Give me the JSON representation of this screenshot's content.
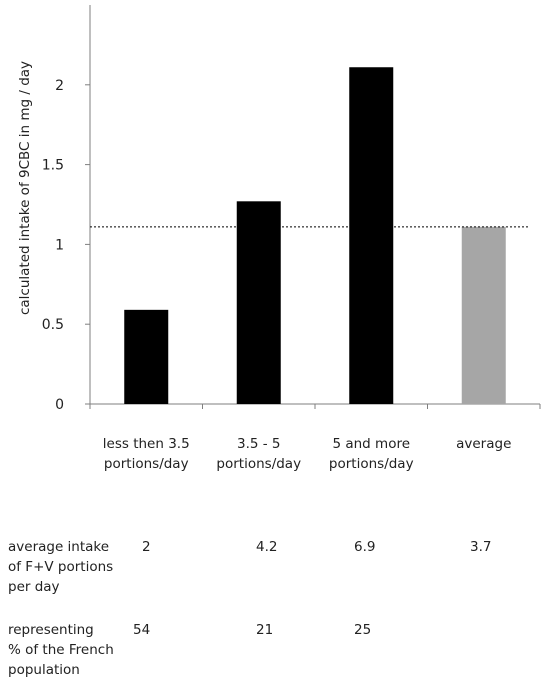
{
  "chart_data": {
    "type": "bar",
    "ylabel": "calculated intake of 9CBC in mg / day",
    "xlabel": "",
    "title": "",
    "ylim": [
      0,
      2.5
    ],
    "yticks": [
      0,
      0.5,
      1,
      1.5,
      2
    ],
    "ytick_labels": [
      "0",
      "0.5",
      "1",
      "1.5",
      "2"
    ],
    "categories": [
      [
        "less then 3.5",
        "portions/day"
      ],
      [
        "3.5 - 5",
        "portions/day"
      ],
      [
        "5 and more",
        "portions/day"
      ],
      [
        "average"
      ]
    ],
    "values": [
      0.59,
      1.27,
      2.11,
      1.11
    ],
    "colors": [
      "#000000",
      "#000000",
      "#000000",
      "#a6a6a6"
    ],
    "reference_line": {
      "value": 1.11,
      "style": "dotted",
      "color": "#000000"
    },
    "grid": false,
    "legend": "none"
  },
  "table": {
    "rows": [
      {
        "label": [
          "average intake",
          "of F+V portions",
          "per day"
        ],
        "values": [
          "2",
          "4.2",
          "6.9",
          "3.7"
        ]
      },
      {
        "label": [
          "representing",
          "% of the French",
          "population"
        ],
        "values": [
          "54",
          "21",
          "25",
          ""
        ]
      }
    ]
  }
}
